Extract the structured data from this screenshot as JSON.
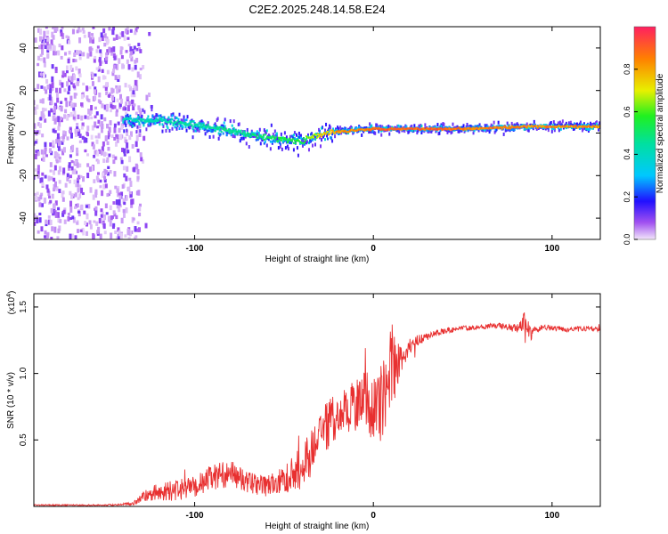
{
  "title": "C2E2.2025.248.14.58.E24",
  "chart_data": [
    {
      "type": "heatmap",
      "name": "spectrogram",
      "xlabel": "Height of straight line (km)",
      "ylabel": "Frequency (Hz)",
      "xlim": [
        -190,
        127
      ],
      "ylim": [
        -50,
        50
      ],
      "x_ticks": [
        -100,
        0,
        100
      ],
      "x_tick_labels": [
        "-100",
        "0",
        "100"
      ],
      "y_ticks": [
        -40,
        -20,
        0,
        20,
        40
      ],
      "y_tick_labels": [
        "-40",
        "-20",
        "0",
        "20",
        "40"
      ],
      "noise_region_x": [
        -190,
        -130
      ],
      "ridge": {
        "x": [
          -140,
          -120,
          -100,
          -80,
          -60,
          -50,
          -40,
          -35,
          -25,
          -15,
          0,
          20,
          50,
          90,
          127
        ],
        "y": [
          6,
          6,
          4,
          1,
          -2,
          -3,
          -4,
          -2,
          0,
          1,
          2,
          2,
          2,
          3,
          3
        ],
        "amp": [
          0.45,
          0.45,
          0.5,
          0.5,
          0.55,
          0.6,
          0.6,
          0.7,
          0.85,
          0.9,
          0.95,
          0.97,
          0.95,
          0.9,
          0.9
        ]
      },
      "colorbar": {
        "label": "Normalized spectral amplitude",
        "range": [
          0,
          1
        ],
        "ticks": [
          0.0,
          0.2,
          0.4,
          0.6,
          0.8
        ],
        "tick_labels": [
          "0.0",
          "0.2",
          "0.4",
          "0.6",
          "0.8"
        ]
      }
    },
    {
      "type": "line",
      "name": "snr",
      "xlabel": "Height of straight line (km)",
      "ylabel": "SNR (10 * v/v)",
      "y_multiplier": "(x10",
      "y_multiplier_exp": "4",
      "y_multiplier_close": ")",
      "xlim": [
        -190,
        127
      ],
      "ylim": [
        0,
        1.6
      ],
      "x_ticks": [
        -100,
        0,
        100
      ],
      "x_tick_labels": [
        "-100",
        "0",
        "100"
      ],
      "y_ticks": [
        0.5,
        1.0,
        1.5
      ],
      "y_tick_labels": [
        "0.5",
        "1.0",
        "1.5"
      ],
      "color": "#e83030",
      "series": [
        {
          "name": "SNR",
          "x": [
            -190,
            -150,
            -135,
            -125,
            -110,
            -100,
            -90,
            -80,
            -70,
            -60,
            -50,
            -40,
            -35,
            -30,
            -25,
            -20,
            -15,
            -10,
            -5,
            0,
            5,
            10,
            15,
            20,
            25,
            30,
            35,
            40,
            50,
            60,
            70,
            80,
            85,
            88,
            90,
            95,
            100,
            110,
            120,
            127
          ],
          "y": [
            0.01,
            0.01,
            0.02,
            0.1,
            0.12,
            0.15,
            0.22,
            0.25,
            0.18,
            0.15,
            0.2,
            0.3,
            0.4,
            0.55,
            0.62,
            0.68,
            0.72,
            0.78,
            0.85,
            0.7,
            0.8,
            1.05,
            1.1,
            1.2,
            1.25,
            1.28,
            1.3,
            1.32,
            1.34,
            1.35,
            1.36,
            1.34,
            1.4,
            1.3,
            1.32,
            1.35,
            1.34,
            1.33,
            1.34,
            1.33
          ],
          "amp": [
            0.005,
            0.005,
            0.01,
            0.06,
            0.08,
            0.08,
            0.1,
            0.1,
            0.08,
            0.08,
            0.1,
            0.18,
            0.18,
            0.15,
            0.2,
            0.15,
            0.18,
            0.22,
            0.2,
            0.25,
            0.3,
            0.35,
            0.12,
            0.06,
            0.04,
            0.03,
            0.03,
            0.02,
            0.02,
            0.02,
            0.02,
            0.03,
            0.08,
            0.06,
            0.03,
            0.02,
            0.02,
            0.02,
            0.02,
            0.02
          ]
        }
      ]
    }
  ]
}
